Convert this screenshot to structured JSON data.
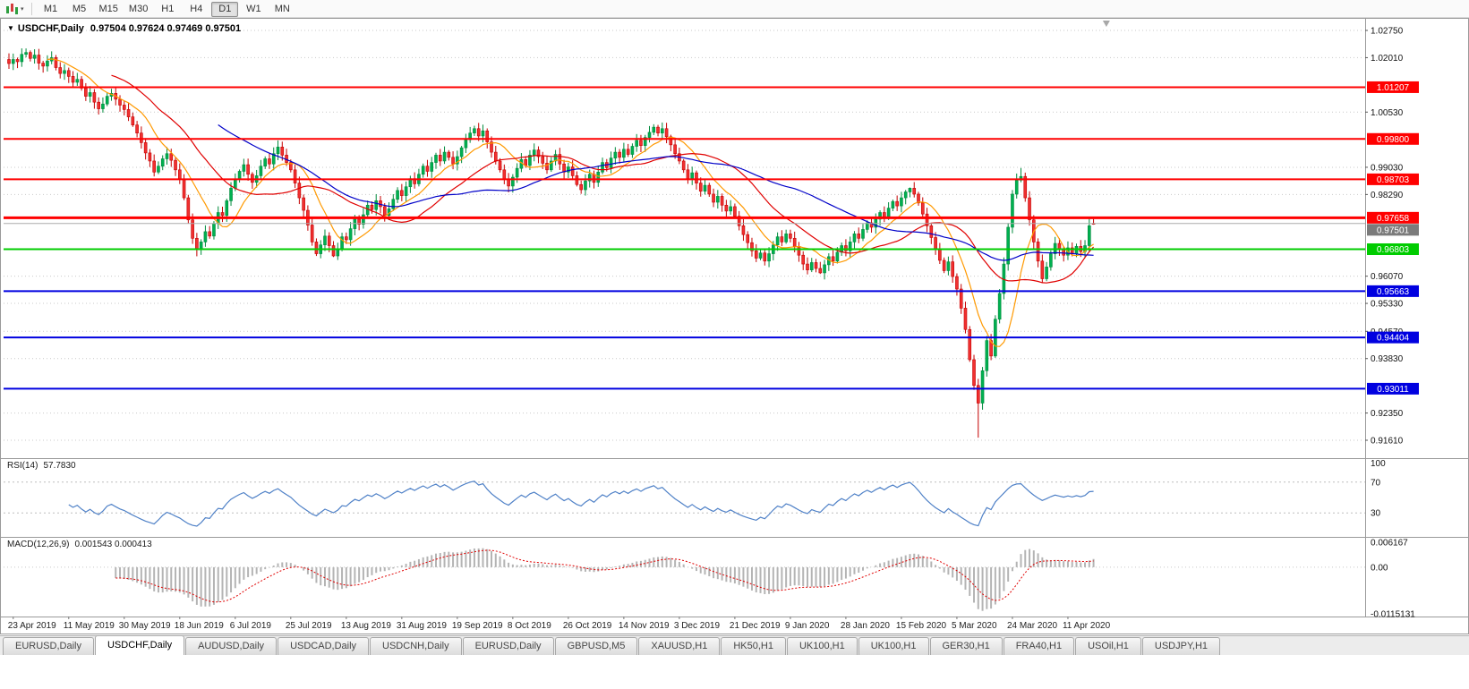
{
  "toolbar": {
    "timeframes": [
      "M1",
      "M5",
      "M15",
      "M30",
      "H1",
      "H4",
      "D1",
      "W1",
      "MN"
    ],
    "active_timeframe": "D1"
  },
  "chart": {
    "symbol_label": "USDCHF,Daily",
    "quote": "0.97504 0.97624 0.97469 0.97501"
  },
  "indicators": {
    "rsi": {
      "name": "RSI(14)",
      "value": "57.7830",
      "period": 14,
      "levels": [
        70,
        30
      ],
      "axis_labels": [
        "100",
        "70",
        "30"
      ],
      "color": "#4f81c7"
    },
    "macd": {
      "name": "MACD(12,26,9)",
      "values": "0.001543 0.000413",
      "fast": 12,
      "slow": 26,
      "signal": 9,
      "axis_labels": [
        "0.006167",
        "0.00",
        "-0.0115131"
      ],
      "max": 0.006167,
      "min": -0.0115131,
      "bar_color": "#b4b4b4",
      "signal_color": "#e00000"
    }
  },
  "chart_data": {
    "type": "candlestick",
    "symbol": "USDCHF",
    "timeframe": "Daily",
    "y_range": [
      0.9161,
      1.0275
    ],
    "y_ticks": [
      "1.02750",
      "1.02010",
      "1.00530",
      "0.99030",
      "0.98290",
      "0.96070",
      "0.95330",
      "0.94570",
      "0.93830",
      "0.92350",
      "0.91610"
    ],
    "x_ticks": [
      "23 Apr 2019",
      "11 May 2019",
      "30 May 2019",
      "18 Jun 2019",
      "6 Jul 2019",
      "25 Jul 2019",
      "13 Aug 2019",
      "31 Aug 2019",
      "19 Sep 2019",
      "8 Oct 2019",
      "26 Oct 2019",
      "14 Nov 2019",
      "3 Dec 2019",
      "21 Dec 2019",
      "9 Jan 2020",
      "28 Jan 2020",
      "15 Feb 2020",
      "5 Mar 2020",
      "24 Mar 2020",
      "11 Apr 2020"
    ],
    "candles_per_tick": 13,
    "current_price": 0.97501,
    "hlines": [
      {
        "price": 1.01207,
        "color": "#ff0000",
        "width": 2
      },
      {
        "price": 0.998,
        "color": "#ff0000",
        "width": 2
      },
      {
        "price": 0.98703,
        "color": "#ff0000",
        "width": 2
      },
      {
        "price": 0.97658,
        "color": "#ff0000",
        "width": 3
      },
      {
        "price": 0.96803,
        "color": "#00cc00",
        "width": 2
      },
      {
        "price": 0.95663,
        "color": "#0000e0",
        "width": 2
      },
      {
        "price": 0.94404,
        "color": "#0000e0",
        "width": 2
      },
      {
        "price": 0.93011,
        "color": "#0000e0",
        "width": 2
      }
    ],
    "colors": {
      "up_fill": "#00b050",
      "up_stroke": "#008a3c",
      "down_fill": "#f03030",
      "down_stroke": "#c40000",
      "grid": "#c9c9c9",
      "current_line": "#ababab",
      "current_badge": "#7b7b7b"
    },
    "moving_averages": [
      {
        "period": 10,
        "color": "#ff9900"
      },
      {
        "period": 25,
        "color": "#e00000"
      },
      {
        "period": 50,
        "color": "#0000c8"
      }
    ],
    "first_open": 1.0196,
    "closes": [
      1.0185,
      1.0196,
      1.019,
      1.021,
      1.0215,
      1.0199,
      1.0208,
      1.0186,
      1.0178,
      1.0192,
      1.0201,
      1.0174,
      1.0158,
      1.0166,
      1.015,
      1.0134,
      1.0142,
      1.0118,
      1.0096,
      1.0106,
      1.008,
      1.0062,
      1.0075,
      1.0096,
      1.0104,
      1.0088,
      1.0072,
      1.006,
      1.004,
      1.0018,
      0.9996,
      0.997,
      0.9942,
      0.992,
      0.989,
      0.9906,
      0.9926,
      0.994,
      0.9922,
      0.9896,
      0.987,
      0.982,
      0.976,
      0.971,
      0.9682,
      0.97,
      0.9728,
      0.9716,
      0.975,
      0.978,
      0.9772,
      0.9812,
      0.9846,
      0.987,
      0.9892,
      0.991,
      0.9884,
      0.9862,
      0.988,
      0.9906,
      0.9926,
      0.9912,
      0.994,
      0.9958,
      0.9936,
      0.9916,
      0.9896,
      0.986,
      0.982,
      0.9786,
      0.9746,
      0.97,
      0.9668,
      0.9692,
      0.9716,
      0.969,
      0.9662,
      0.968,
      0.9714,
      0.9706,
      0.9736,
      0.9762,
      0.9748,
      0.9774,
      0.98,
      0.9788,
      0.9812,
      0.9796,
      0.9772,
      0.979,
      0.9816,
      0.984,
      0.9826,
      0.985,
      0.9872,
      0.9858,
      0.9884,
      0.9906,
      0.9892,
      0.9916,
      0.9936,
      0.992,
      0.9944,
      0.993,
      0.9912,
      0.9932,
      0.9956,
      0.9978,
      0.9996,
      1.0008,
      0.9988,
      1.0002,
      0.9972,
      0.9944,
      0.992,
      0.9896,
      0.987,
      0.9852,
      0.9876,
      0.99,
      0.9924,
      0.9908,
      0.9936,
      0.995,
      0.9932,
      0.9914,
      0.9896,
      0.992,
      0.9938,
      0.9912,
      0.989,
      0.9904,
      0.988,
      0.9856,
      0.9842,
      0.9866,
      0.9884,
      0.9862,
      0.989,
      0.9916,
      0.9902,
      0.9928,
      0.9944,
      0.993,
      0.9952,
      0.9938,
      0.996,
      0.9976,
      0.9962,
      0.9984,
      0.9998,
      1.0012,
      0.9996,
      1.0008,
      0.9986,
      0.9964,
      0.994,
      0.992,
      0.9896,
      0.9872,
      0.9888,
      0.986,
      0.9838,
      0.9854,
      0.983,
      0.9808,
      0.9824,
      0.98,
      0.9784,
      0.9796,
      0.977,
      0.9744,
      0.972,
      0.9698,
      0.9676,
      0.9656,
      0.967,
      0.9648,
      0.9668,
      0.9692,
      0.9714,
      0.97,
      0.9722,
      0.971,
      0.9688,
      0.9664,
      0.964,
      0.9624,
      0.9644,
      0.9628,
      0.9616,
      0.9638,
      0.966,
      0.9648,
      0.9672,
      0.969,
      0.9676,
      0.97,
      0.9722,
      0.971,
      0.9734,
      0.9752,
      0.974,
      0.9762,
      0.978,
      0.9768,
      0.9792,
      0.981,
      0.9798,
      0.982,
      0.9836,
      0.9846,
      0.983,
      0.9806,
      0.9776,
      0.9744,
      0.9712,
      0.968,
      0.965,
      0.9622,
      0.9646,
      0.9606,
      0.9572,
      0.952,
      0.9462,
      0.938,
      0.931,
      0.9262,
      0.935,
      0.9432,
      0.939,
      0.949,
      0.956,
      0.964,
      0.974,
      0.983,
      0.9868,
      0.9878,
      0.982,
      0.976,
      0.97,
      0.9648,
      0.96,
      0.9632,
      0.9668,
      0.9696,
      0.968,
      0.9664,
      0.9684,
      0.9668,
      0.9688,
      0.9674,
      0.969,
      0.9744,
      0.97501
    ],
    "wick_overrides": {
      "4": {
        "h": 1.0226
      },
      "44": {
        "l": 0.9661
      },
      "63": {
        "h": 0.9976
      },
      "76": {
        "l": 0.9659
      },
      "109": {
        "h": 1.0016
      },
      "151": {
        "h": 1.002
      },
      "190": {
        "l": 0.9613
      },
      "211": {
        "h": 0.9848
      },
      "227": {
        "l": 0.9168
      },
      "237": {
        "h": 0.9901
      },
      "242": {
        "l": 0.959
      },
      "253": {
        "h": 0.9766
      },
      "254": {
        "o": 0.97504,
        "h": 0.97624,
        "l": 0.97469,
        "c": 0.97501
      }
    }
  },
  "tabs": {
    "items": [
      "EURUSD,Daily",
      "USDCHF,Daily",
      "AUDUSD,Daily",
      "USDCAD,Daily",
      "USDCNH,Daily",
      "EURUSD,Daily",
      "GBPUSD,M5",
      "XAUUSD,H1",
      "HK50,H1",
      "UK100,H1",
      "UK100,H1",
      "GER30,H1",
      "FRA40,H1",
      "USOil,H1",
      "USDJPY,H1"
    ],
    "active_index": 1
  }
}
